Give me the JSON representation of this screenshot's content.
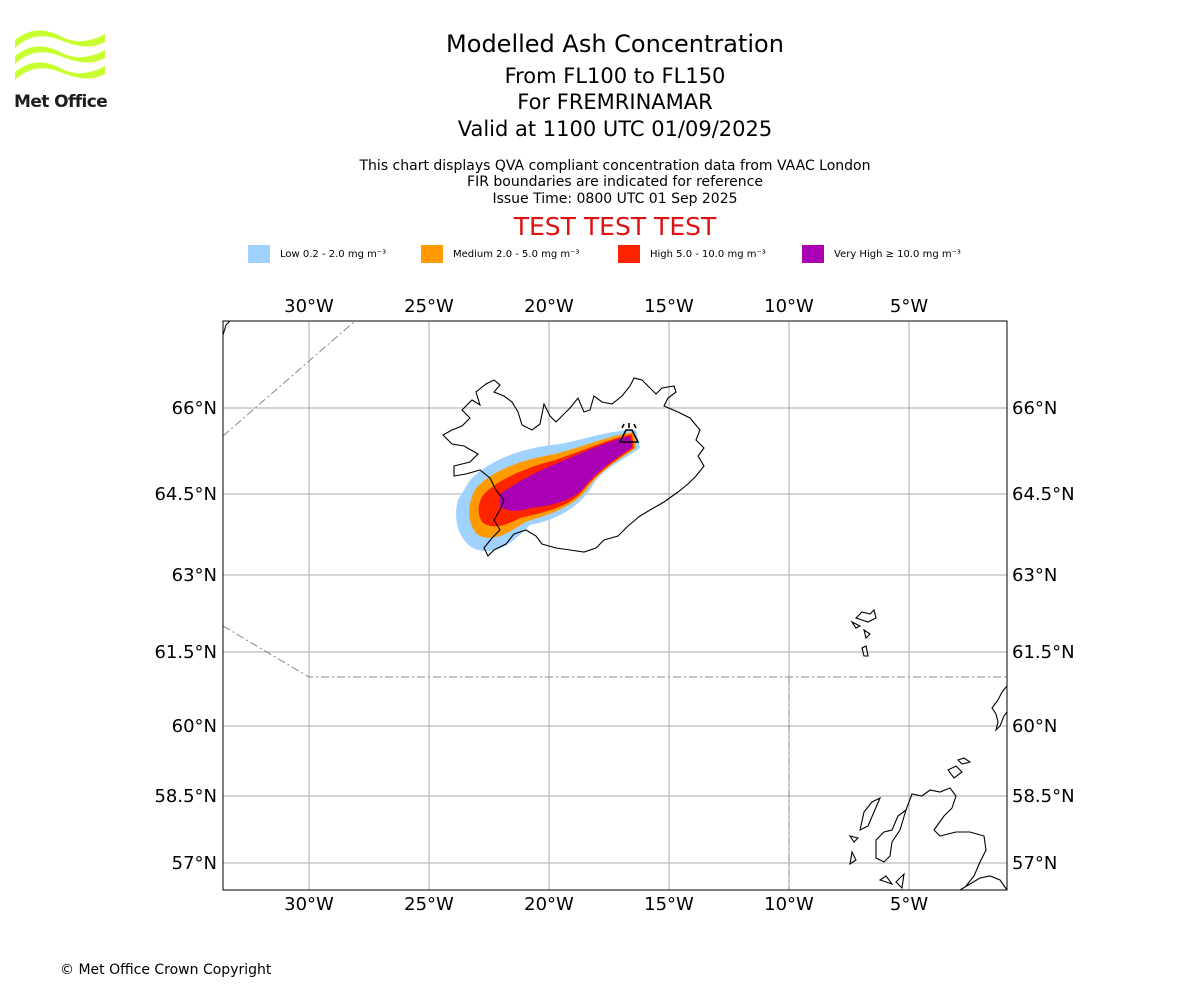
{
  "brand": {
    "name": "Met Office"
  },
  "titles": {
    "main": "Modelled Ash Concentration",
    "levels": "From FL100 to FL150",
    "volcano": "For FREMRINAMAR",
    "valid": "Valid at 1100 UTC 01/09/2025"
  },
  "notes": {
    "line1": "This chart displays QVA compliant concentration data from VAAC London",
    "line2": "FIR boundaries are indicated for reference",
    "line3": "Issue Time: 0800 UTC 01 Sep 2025"
  },
  "test_banner": "TEST TEST TEST",
  "legend": [
    {
      "label": "Low 0.2 - 2.0 mg m⁻³",
      "color": "#a0d2ff"
    },
    {
      "label": "Medium 2.0 - 5.0 mg m⁻³",
      "color": "#ff9a00"
    },
    {
      "label": "High 5.0 - 10.0 mg m⁻³",
      "color": "#ff2400"
    },
    {
      "label": "Very High ≥ 10.0 mg m⁻³",
      "color": "#aa00b4"
    }
  ],
  "map": {
    "lon_labels": [
      "30°W",
      "25°W",
      "20°W",
      "15°W",
      "10°W",
      "5°W"
    ],
    "lat_labels": [
      "66°N",
      "64.5°N",
      "63°N",
      "61.5°N",
      "60°N",
      "58.5°N",
      "57°N"
    ],
    "grid_color": "#aaaaaa",
    "coastline_color": "#000000",
    "fir_boundary_style": "dash-dot grey",
    "volcano_marker": "volcano-icon"
  },
  "footer": {
    "copyright": "© Met Office Crown Copyright"
  }
}
